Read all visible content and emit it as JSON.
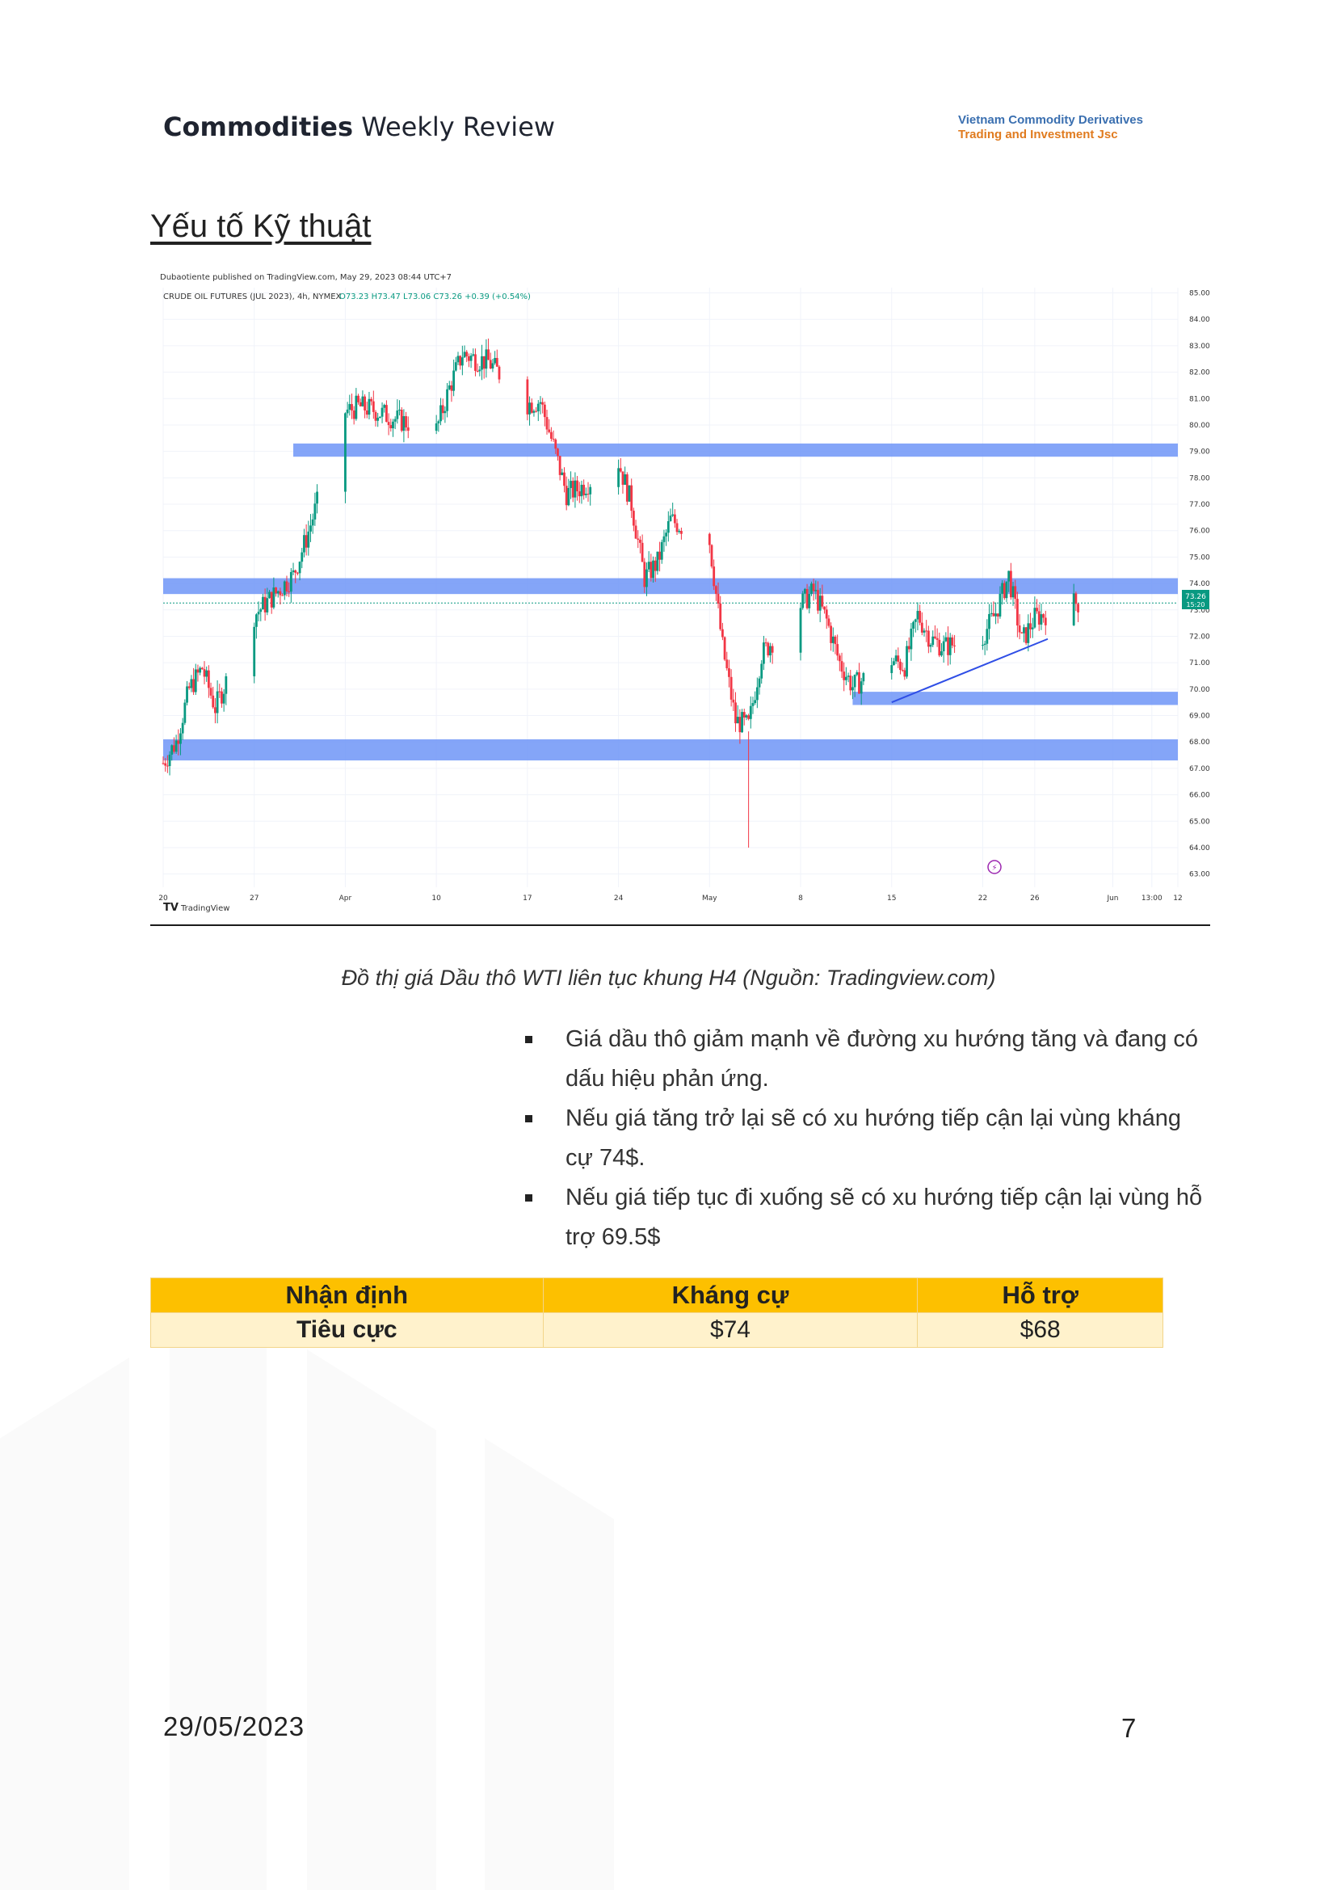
{
  "header": {
    "title_bold": "Commodities",
    "title_rest": "Weekly Review",
    "company_line1": "Vietnam Commodity Derivatives",
    "company_line2": "Trading and Investment Jsc"
  },
  "section_title": "Yếu tố Kỹ thuật",
  "chart": {
    "publisher": "Dubaotiente published on TradingView.com, May 29, 2023 08:44 UTC+7",
    "symbol_line": "CRUDE OIL FUTURES (JUL 2023), 4h, NYMEX",
    "ohlc": "O73.23  H73.47  L73.06  C73.26  +0.39 (+0.54%)",
    "last_price": "73.26",
    "last_time": "15:20",
    "brand": "TradingView",
    "x_ticks": [
      "20",
      "27",
      "Apr",
      "10",
      "17",
      "24",
      "May",
      "8",
      "15",
      "22",
      "26",
      "Jun",
      "13:00",
      "12"
    ],
    "y_ticks": [
      "85.00",
      "84.00",
      "83.00",
      "82.00",
      "81.00",
      "80.00",
      "79.00",
      "78.00",
      "77.00",
      "76.00",
      "75.00",
      "74.00",
      "73.00",
      "72.00",
      "71.00",
      "70.00",
      "69.00",
      "68.00",
      "67.00",
      "66.00",
      "65.00",
      "64.00",
      "63.00"
    ],
    "colors": {
      "up": "#089981",
      "down": "#f23645",
      "zone": "#6f95f7",
      "trend": "#2f4ee6"
    }
  },
  "chart_data": {
    "type": "candlestick",
    "title": "CRUDE OIL FUTURES (JUL 2023), 4h, NYMEX",
    "ylim": [
      62.5,
      85.2
    ],
    "zones": [
      {
        "from_date": "2023-03-30",
        "low": 78.8,
        "high": 79.3
      },
      {
        "from_date": "2023-03-20",
        "low": 73.6,
        "high": 74.2
      },
      {
        "from_date": "2023-05-12",
        "low": 69.4,
        "high": 69.9
      },
      {
        "from_date": "2023-03-20",
        "low": 67.3,
        "high": 68.1
      }
    ],
    "trendline": {
      "from": [
        "2023-05-15",
        69.5
      ],
      "to": [
        "2023-05-27",
        71.9
      ]
    },
    "price_path": [
      [
        "2023-03-20",
        67.2
      ],
      [
        "2023-03-21",
        68.0
      ],
      [
        "2023-03-22",
        70.0
      ],
      [
        "2023-03-23",
        70.8
      ],
      [
        "2023-03-24",
        69.3
      ],
      [
        "2023-03-27",
        72.8
      ],
      [
        "2023-03-28",
        73.3
      ],
      [
        "2023-03-29",
        73.8
      ],
      [
        "2023-03-30",
        74.3
      ],
      [
        "2023-03-31",
        75.7
      ],
      [
        "2023-04-03",
        80.5
      ],
      [
        "2023-04-04",
        80.7
      ],
      [
        "2023-04-05",
        80.6
      ],
      [
        "2023-04-06",
        80.4
      ],
      [
        "2023-04-07",
        80.2
      ],
      [
        "2023-04-10",
        79.8
      ],
      [
        "2023-04-11",
        81.4
      ],
      [
        "2023-04-12",
        82.7
      ],
      [
        "2023-04-13",
        82.5
      ],
      [
        "2023-04-14",
        82.4
      ],
      [
        "2023-04-17",
        80.8
      ],
      [
        "2023-04-18",
        80.9
      ],
      [
        "2023-04-19",
        79.2
      ],
      [
        "2023-04-20",
        77.4
      ],
      [
        "2023-04-21",
        77.6
      ],
      [
        "2023-04-24",
        78.6
      ],
      [
        "2023-04-25",
        77.0
      ],
      [
        "2023-04-26",
        74.2
      ],
      [
        "2023-04-27",
        74.8
      ],
      [
        "2023-04-28",
        76.4
      ],
      [
        "2023-05-01",
        75.6
      ],
      [
        "2023-05-02",
        71.6
      ],
      [
        "2023-05-03",
        68.8
      ],
      [
        "2023-05-04",
        68.6
      ],
      [
        "2023-05-05",
        71.3
      ],
      [
        "2023-05-08",
        73.2
      ],
      [
        "2023-05-09",
        73.7
      ],
      [
        "2023-05-10",
        72.6
      ],
      [
        "2023-05-11",
        71.0
      ],
      [
        "2023-05-12",
        70.1
      ],
      [
        "2023-05-15",
        71.1
      ],
      [
        "2023-05-16",
        70.9
      ],
      [
        "2023-05-17",
        72.8
      ],
      [
        "2023-05-18",
        71.9
      ],
      [
        "2023-05-19",
        71.6
      ],
      [
        "2023-05-22",
        72.0
      ],
      [
        "2023-05-23",
        72.9
      ],
      [
        "2023-05-24",
        74.3
      ],
      [
        "2023-05-25",
        71.8
      ],
      [
        "2023-05-26",
        72.7
      ],
      [
        "2023-05-29",
        73.26
      ]
    ]
  },
  "caption": "Đồ thị  giá Dầu thô WTI  liên tục khung H4 (Nguồn: Tradingview.com)",
  "bullets": [
    "Giá dầu thô giảm mạnh về đường xu hướng tăng và đang có dấu hiệu phản ứng.",
    "Nếu giá tăng trở lại sẽ có xu hướng tiếp cận lại vùng kháng cự 74$.",
    "Nếu giá tiếp tục đi xuống sẽ có xu hướng tiếp cận lại vùng hỗ trợ 69.5$"
  ],
  "table": {
    "headers": [
      "Nhận định",
      "Kháng cự",
      "Hỗ trợ"
    ],
    "row": [
      "Tiêu cực",
      "$74",
      "$68"
    ]
  },
  "footer": {
    "date": "29/05/2023",
    "page": "7"
  }
}
